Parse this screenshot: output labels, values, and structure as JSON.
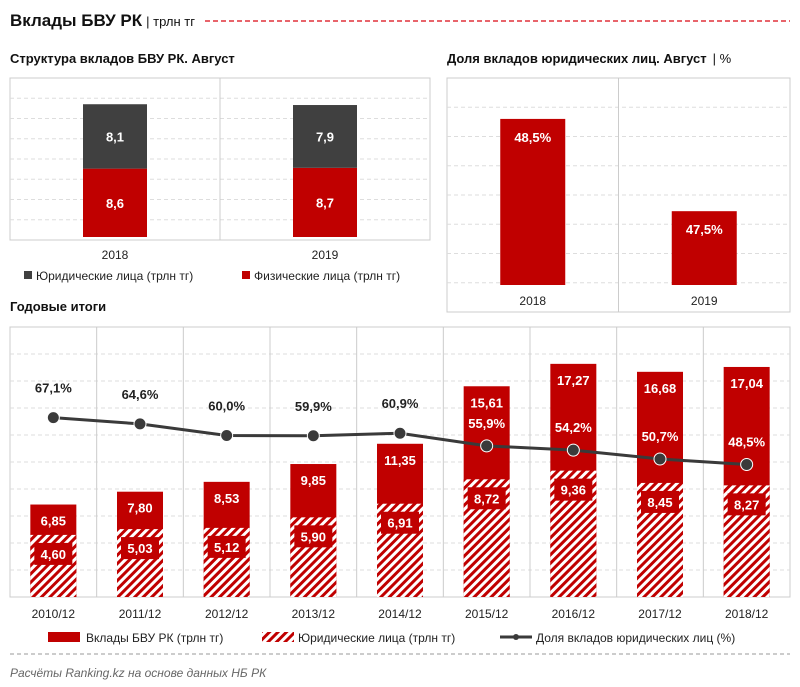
{
  "header": {
    "title": "Вклады БВУ РК",
    "unit": "| трлн тг"
  },
  "footer": {
    "source": "Расчёты Ranking.kz на основе данных НБ РК"
  },
  "colors": {
    "red": "#c00000",
    "dark": "#404040",
    "line": "#3a3a3a",
    "dash": "#e0303a"
  },
  "chart_data": [
    {
      "type": "bar",
      "stacked": true,
      "title": "Структура вкладов БВУ РК. Август",
      "categories": [
        "2018",
        "2019"
      ],
      "series": [
        {
          "name": "Физические лица (трлн тг)",
          "values": [
            8.6,
            8.7
          ],
          "labels": [
            "8,6",
            "8,7"
          ]
        },
        {
          "name": "Юридические лица (трлн тг)",
          "values": [
            8.1,
            7.9
          ],
          "labels": [
            "8,1",
            "7,9"
          ]
        }
      ],
      "legend": "bottom",
      "grid": true
    },
    {
      "type": "bar",
      "title": "Доля вкладов юридических лиц. Август",
      "unit": "| %",
      "categories": [
        "2018",
        "2019"
      ],
      "values": [
        48.5,
        47.5
      ],
      "labels": [
        "48,5%",
        "47,5%"
      ],
      "ylim": [
        46.7,
        48.9
      ],
      "grid": true
    },
    {
      "type": "bar",
      "title": "Годовые итоги",
      "categories": [
        "2010/12",
        "2011/12",
        "2012/12",
        "2013/12",
        "2014/12",
        "2015/12",
        "2016/12",
        "2017/12",
        "2018/12"
      ],
      "series": [
        {
          "name": "Вклады БВУ РК (трлн тг)",
          "type": "bar",
          "values": [
            6.85,
            7.8,
            8.53,
            9.85,
            11.35,
            15.61,
            17.27,
            16.68,
            17.04
          ],
          "labels": [
            "6,85",
            "7,80",
            "8,53",
            "9,85",
            "11,35",
            "15,61",
            "17,27",
            "16,68",
            "17,04"
          ]
        },
        {
          "name": "Юридические лица (трлн тг)",
          "type": "bar-hatched",
          "values": [
            4.6,
            5.03,
            5.12,
            5.9,
            6.91,
            8.72,
            9.36,
            8.45,
            8.27
          ],
          "labels": [
            "4,60",
            "5,03",
            "5,12",
            "5,90",
            "6,91",
            "8,72",
            "9,36",
            "8,45",
            "8,27"
          ]
        },
        {
          "name": "Доля вкладов юридических лиц (%)",
          "type": "line",
          "axis": "secondary",
          "values": [
            67.1,
            64.6,
            60.0,
            59.9,
            60.9,
            55.9,
            54.2,
            50.7,
            48.5
          ],
          "labels": [
            "67,1%",
            "64,6%",
            "60,0%",
            "59,9%",
            "60,9%",
            "55,9%",
            "54,2%",
            "50,7%",
            "48,5%"
          ]
        }
      ],
      "ylim": [
        0,
        20
      ],
      "ylim_secondary": [
        -4,
        103
      ],
      "legend": "bottom",
      "grid": true
    }
  ]
}
